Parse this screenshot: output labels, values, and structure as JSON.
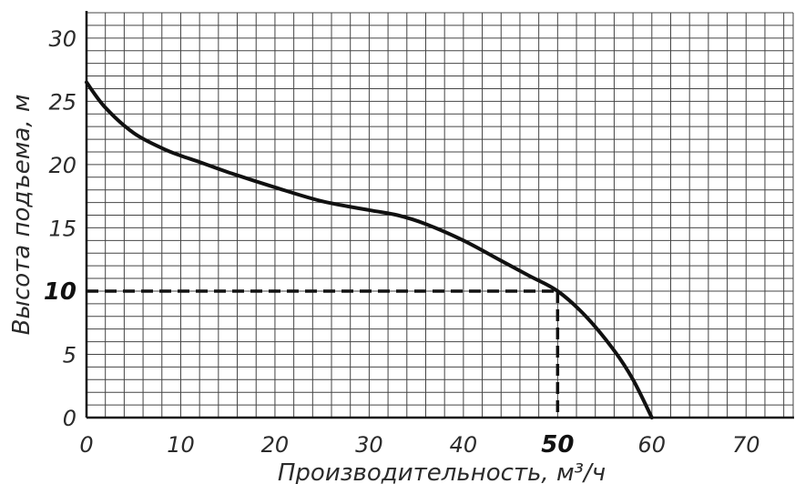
{
  "chart_data": {
    "type": "line",
    "title": "",
    "xlabel": "Производительность, м³/ч",
    "ylabel": "Высота подъема, м",
    "xlim": [
      0,
      75
    ],
    "ylim": [
      0,
      32
    ],
    "x_ticks": [
      "0",
      "10",
      "20",
      "30",
      "40",
      "50",
      "60",
      "70"
    ],
    "y_ticks": [
      "0",
      "5",
      "10",
      "15",
      "20",
      "25",
      "30"
    ],
    "highlight_x_tick": "50",
    "highlight_y_tick": "10",
    "grid": true,
    "grid_step_x": 2,
    "grid_step_y": 1,
    "series": [
      {
        "x": [
          0,
          2,
          5,
          8,
          10,
          12,
          15,
          20,
          25,
          30,
          33,
          36,
          40,
          44,
          47,
          50,
          53,
          56,
          58,
          60
        ],
        "y": [
          26.5,
          24.5,
          22.5,
          21.3,
          20.7,
          20.2,
          19.4,
          18.2,
          17.1,
          16.4,
          16.0,
          15.3,
          14.0,
          12.4,
          11.2,
          10.0,
          8.0,
          5.3,
          3.0,
          0.0
        ]
      }
    ],
    "annotations": [
      {
        "type": "dashed-guide",
        "x": 50,
        "y": 10
      }
    ]
  }
}
